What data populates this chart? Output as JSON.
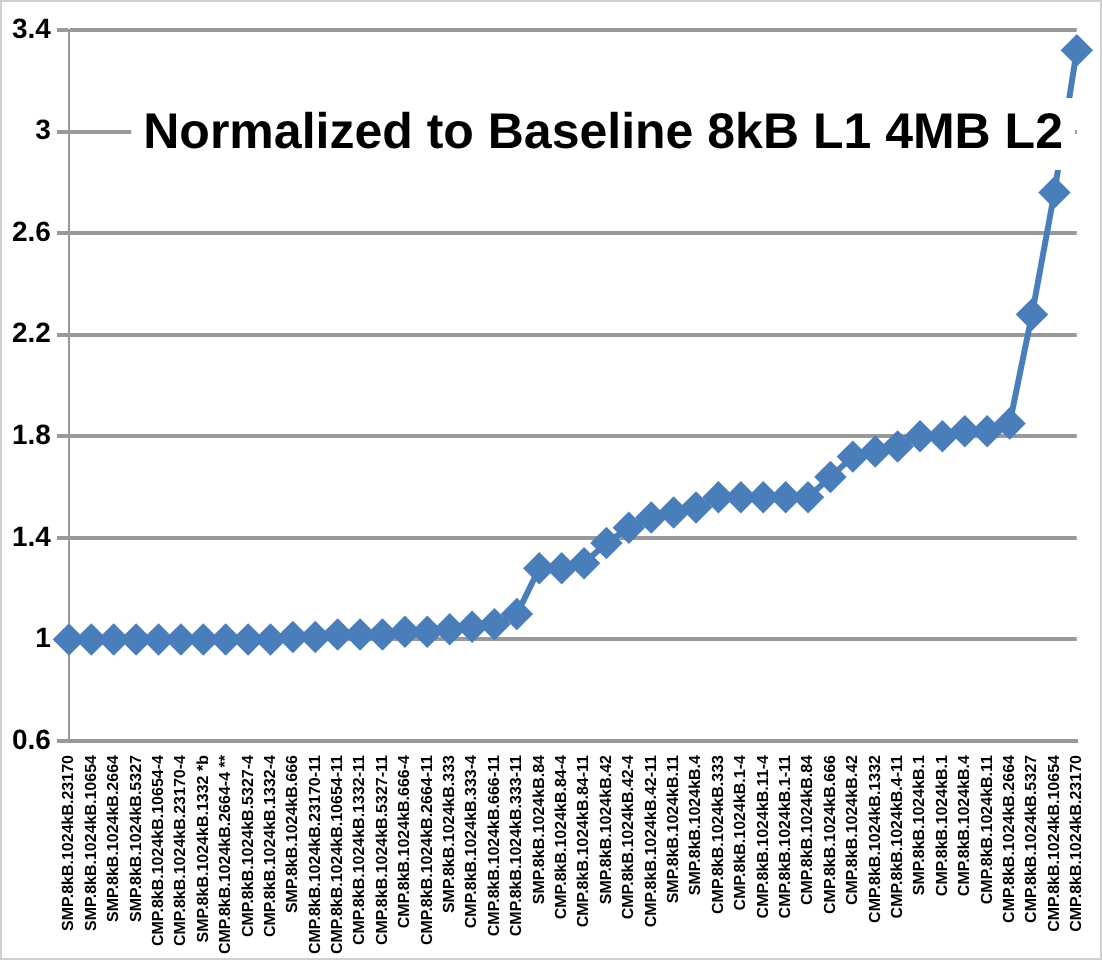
{
  "chart_data": {
    "type": "line",
    "title": "Normalized to Baseline 8kB L1 4MB L2",
    "categories": [
      "SMP.8kB.1024kB.23170",
      "SMP.8kB.1024kB.10654",
      "SMP.8kB.1024kB.2664",
      "SMP.8kB.1024kB.5327",
      "CMP.8kB.1024kB.10654-4",
      "CMP.8kB.1024kB.23170-4",
      "SMP.8kB.1024kB.1332 *b",
      "CMP.8kB.1024kB.2664-4 **",
      "CMP.8kB.1024kB.5327-4",
      "CMP.8kB.1024kB.1332-4",
      "SMP.8kB.1024kB.666",
      "CMP.8kB.1024kB.23170-11",
      "CMP.8kB.1024kB.10654-11",
      "CMP.8kB.1024kB.1332-11",
      "CMP.8kB.1024kB.5327-11",
      "CMP.8kB.1024kB.666-4",
      "CMP.8kB.1024kB.2664-11",
      "SMP.8kB.1024kB.333",
      "CMP.8kB.1024kB.333-4",
      "CMP.8kB.1024kB.666-11",
      "CMP.8kB.1024kB.333-11",
      "SMP.8kB.1024kB.84",
      "CMP.8kB.1024kB.84-4",
      "CMP.8kB.1024kB.84-11",
      "SMP.8kB.1024kB.42",
      "CMP.8kB.1024kB.42-4",
      "CMP.8kB.1024kB.42-11",
      "SMP.8kB.1024kB.11",
      "SMP.8kB.1024kB.4",
      "CMP.8kB.1024kB.333",
      "CMP.8kB.1024kB.1-4",
      "CMP.8kB.1024kB.11-4",
      "CMP.8kB.1024kB.1-11",
      "CMP.8kB.1024kB.84",
      "CMP.8kB.1024kB.666",
      "CMP.8kB.1024kB.42",
      "CMP.8kB.1024kB.1332",
      "CMP.8kB.1024kB.4-11",
      "SMP.8kB.1024kB.1",
      "CMP.8kB.1024kB.1",
      "CMP.8kB.1024kB.4",
      "CMP.8kB.1024kB.11",
      "CMP.8kB.1024kB.2664",
      "CMP.8kB.1024kB.5327",
      "CMP.8kB.1024kB.10654",
      "CMP.8kB.1024kB.23170"
    ],
    "series": [
      {
        "color": "#4a7ebb",
        "values": [
          1.0,
          1.0,
          1.0,
          1.0,
          1.0,
          1.0,
          1.0,
          1.0,
          1.0,
          1.0,
          1.01,
          1.01,
          1.02,
          1.02,
          1.02,
          1.03,
          1.03,
          1.04,
          1.05,
          1.06,
          1.1,
          1.28,
          1.28,
          1.3,
          1.38,
          1.44,
          1.48,
          1.5,
          1.52,
          1.56,
          1.56,
          1.56,
          1.56,
          1.56,
          1.64,
          1.72,
          1.74,
          1.76,
          1.8,
          1.8,
          1.82,
          1.82,
          1.85,
          2.28,
          2.76,
          3.32
        ]
      }
    ],
    "ylim": [
      0.6,
      3.4
    ],
    "yticks": [
      0.6,
      1,
      1.4,
      1.8,
      2.2,
      2.6,
      3,
      3.4
    ],
    "grid": "y",
    "legend": false,
    "marker": "diamond",
    "line_style": "solid"
  }
}
